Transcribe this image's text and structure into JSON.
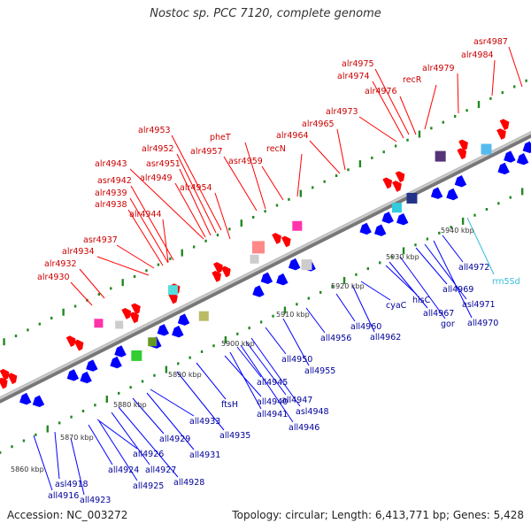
{
  "title": "Nostoc sp. PCC 7120, complete genome",
  "footer": {
    "accession": "Accession: NC_003272",
    "summary": "Topology: circular; Length: 6,413,771 bp; Genes: 5,428"
  },
  "colors": {
    "forward": "#ff0000",
    "reverse": "#0000ff",
    "rna": "#33bbdd",
    "backbone": "#999999",
    "ticks": "#228822"
  },
  "scale_labels": [
    {
      "label": "5860 kbp",
      "kbp": 5860
    },
    {
      "label": "5870 kbp",
      "kbp": 5870
    },
    {
      "label": "5880 kbp",
      "kbp": 5880
    },
    {
      "label": "5890 kbp",
      "kbp": 5890
    },
    {
      "label": "5900 kbp",
      "kbp": 5900
    },
    {
      "label": "5910 kbp",
      "kbp": 5910
    },
    {
      "label": "5920 kbp",
      "kbp": 5920
    },
    {
      "label": "5930 kbp",
      "kbp": 5930
    },
    {
      "label": "5940 kbp",
      "kbp": 5940
    }
  ],
  "forward_genes": [
    "alr4930",
    "alr4932",
    "asr4937",
    "alr4934",
    "alr4938",
    "alr4939",
    "asr4942",
    "alr4943",
    "alr4944",
    "alr4949",
    "asr4951",
    "alr4952",
    "alr4953",
    "alr4954",
    "alr4957",
    "pheT",
    "asr4959",
    "recN",
    "alr4964",
    "alr4965",
    "alr4973",
    "alr4974",
    "alr4975",
    "alr4976",
    "recR",
    "alr4979",
    "alr4984",
    "asr4987"
  ],
  "reverse_genes": [
    "all4916",
    "asl4918",
    "all4923",
    "all4924",
    "all4925",
    "all4926",
    "all4927",
    "all4928",
    "all4929",
    "all4931",
    "all4933",
    "all4935",
    "ftsH",
    "all4940",
    "all4941",
    "all4945",
    "all4946",
    "all4947",
    "asl4948",
    "all4950",
    "all4955",
    "all4956",
    "all4960",
    "all4962",
    "cyaC",
    "hisC",
    "all4967",
    "gor",
    "all4969",
    "asl4971",
    "all4970",
    "all4972"
  ],
  "rna_genes": [
    "rrn5Sd"
  ]
}
